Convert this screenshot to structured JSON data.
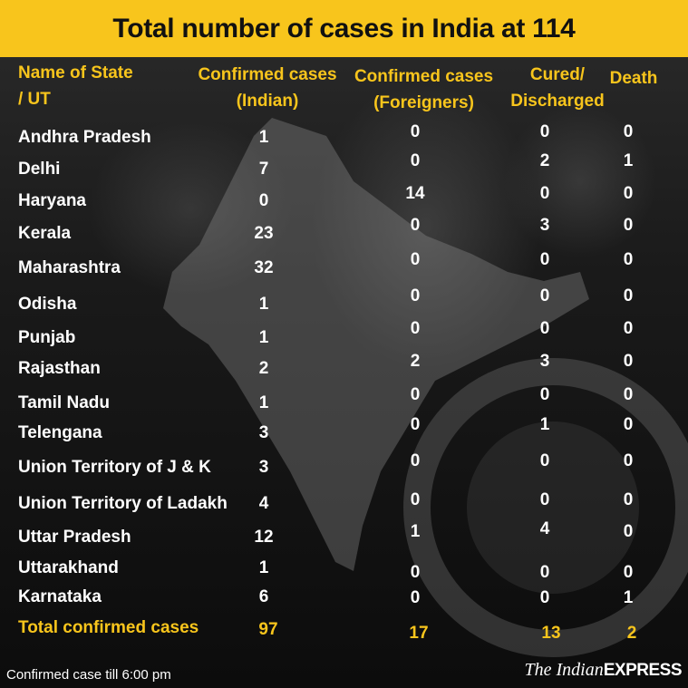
{
  "title": "Total number of cases in India at 114",
  "headers": {
    "name": [
      "Name of State",
      "/ UT"
    ],
    "confirmed_indian": [
      "Confirmed cases",
      "(Indian)"
    ],
    "confirmed_foreigners": [
      "Confirmed cases",
      "(Foreigners)"
    ],
    "cured": [
      "Cured/",
      "Discharged"
    ],
    "death": "Death"
  },
  "rows": [
    {
      "name": "Andhra Pradesh",
      "indian": "1",
      "foreign": "0",
      "cured": "0",
      "death": "0"
    },
    {
      "name": "Delhi",
      "indian": "7",
      "foreign": "0",
      "cured": "2",
      "death": "1"
    },
    {
      "name": "Haryana",
      "indian": "0",
      "foreign": "14",
      "cured": "0",
      "death": "0"
    },
    {
      "name": "Kerala",
      "indian": "23",
      "foreign": "0",
      "cured": "3",
      "death": "0"
    },
    {
      "name": "Maharashtra",
      "indian": "32",
      "foreign": "0",
      "cured": "0",
      "death": "0"
    },
    {
      "name": "Odisha",
      "indian": "1",
      "foreign": "0",
      "cured": "0",
      "death": "0"
    },
    {
      "name": "Punjab",
      "indian": "1",
      "foreign": "0",
      "cured": "0",
      "death": "0"
    },
    {
      "name": "Rajasthan",
      "indian": "2",
      "foreign": "2",
      "cured": "3",
      "death": "0"
    },
    {
      "name": "Tamil Nadu",
      "indian": "1",
      "foreign": "0",
      "cured": "0",
      "death": "0"
    },
    {
      "name": "Telengana",
      "indian": "3",
      "foreign": "0",
      "cured": "1",
      "death": "0"
    },
    {
      "name": "Union Territory of J & K",
      "indian": "3",
      "foreign": "0",
      "cured": "0",
      "death": "0"
    },
    {
      "name": "Union Territory of Ladakh",
      "indian": "4",
      "foreign": "0",
      "cured": "0",
      "death": "0"
    },
    {
      "name": "Uttar Pradesh",
      "indian": "12",
      "foreign": "1",
      "cured": "4",
      "death": "0"
    },
    {
      "name": "Uttarakhand",
      "indian": "1",
      "foreign": "0",
      "cured": "0",
      "death": "0"
    },
    {
      "name": "Karnataka",
      "indian": "6",
      "foreign": "0",
      "cured": "0",
      "death": "1"
    }
  ],
  "total": {
    "name": "Total confirmed cases",
    "indian": "97",
    "foreign": "17",
    "cured": "13",
    "death": "2"
  },
  "footer_note": "Confirmed case till 6:00 pm",
  "brand": {
    "the": "The Indian",
    "express": "EXPRESS"
  },
  "colors": {
    "accent": "#f8c51c",
    "background": "#0e0e0e",
    "text": "#ffffff"
  }
}
